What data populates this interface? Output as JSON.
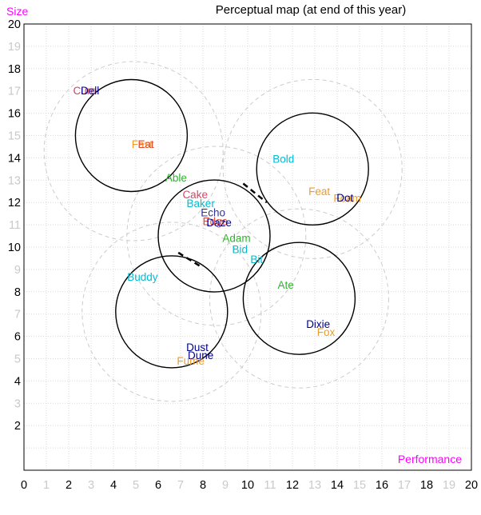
{
  "title": "Perceptual map (at end of this year)",
  "style": {
    "accent_magenta": "#ff00ff",
    "tick_even": "#000000",
    "tick_odd": "#c9c9c9",
    "grid_color": "#d9d9d9",
    "rough_circle_color": "#cccccc",
    "fine_circle_color": "#000000",
    "plot_border_color": "#000000"
  },
  "chart_data": {
    "type": "scatter",
    "title": "Perceptual map (at end of this year)",
    "xlabel": "Performance",
    "ylabel": "Size",
    "xlim": [
      0,
      20
    ],
    "ylim": [
      0,
      20
    ],
    "grid": true,
    "x_ticks": [
      0,
      1,
      2,
      3,
      4,
      5,
      6,
      7,
      8,
      9,
      10,
      11,
      12,
      13,
      14,
      15,
      16,
      17,
      18,
      19,
      20
    ],
    "y_ticks": [
      2,
      3,
      4,
      5,
      6,
      7,
      8,
      9,
      10,
      11,
      12,
      13,
      14,
      15,
      16,
      17,
      18,
      19,
      20
    ],
    "points": [
      {
        "name": "Cure",
        "x": 2.72,
        "y": 17.0,
        "color": "#cc4466"
      },
      {
        "name": "Dell",
        "x": 2.95,
        "y": 17.0,
        "color": "#00008b"
      },
      {
        "name": "Fast",
        "x": 5.28,
        "y": 14.6,
        "color": "#ef9b28"
      },
      {
        "name": "Eat",
        "x": 5.45,
        "y": 14.6,
        "color": "#dd4b39"
      },
      {
        "name": "Able",
        "x": 6.8,
        "y": 13.1,
        "color": "#2eb52e"
      },
      {
        "name": "Cake",
        "x": 7.65,
        "y": 12.35,
        "color": "#dd4466"
      },
      {
        "name": "Baker",
        "x": 7.9,
        "y": 11.95,
        "color": "#00bcd4"
      },
      {
        "name": "Echo",
        "x": 8.45,
        "y": 11.55,
        "color": "#333399"
      },
      {
        "name": "Edge",
        "x": 8.55,
        "y": 11.15,
        "color": "#dd4b39"
      },
      {
        "name": "Daze",
        "x": 8.72,
        "y": 11.1,
        "color": "#00008b"
      },
      {
        "name": "Adam",
        "x": 9.5,
        "y": 10.4,
        "color": "#2eb52e"
      },
      {
        "name": "Bid",
        "x": 9.65,
        "y": 9.9,
        "color": "#00bcd4"
      },
      {
        "name": "Bit",
        "x": 10.4,
        "y": 9.45,
        "color": "#00bcd4"
      },
      {
        "name": "Bold",
        "x": 11.6,
        "y": 13.95,
        "color": "#00bcd4"
      },
      {
        "name": "Feat",
        "x": 13.2,
        "y": 12.5,
        "color": "#ef9b28"
      },
      {
        "name": "Foam",
        "x": 14.45,
        "y": 12.18,
        "color": "#ef9b28"
      },
      {
        "name": "Dot",
        "x": 14.35,
        "y": 12.2,
        "color": "#00008b"
      },
      {
        "name": "Buddy",
        "x": 5.3,
        "y": 8.65,
        "color": "#00bcd4"
      },
      {
        "name": "Ate",
        "x": 11.7,
        "y": 8.3,
        "color": "#2eb52e"
      },
      {
        "name": "Dixie",
        "x": 13.15,
        "y": 6.55,
        "color": "#00008b"
      },
      {
        "name": "Fox",
        "x": 13.5,
        "y": 6.18,
        "color": "#ef9b28"
      },
      {
        "name": "Dust",
        "x": 7.75,
        "y": 5.5,
        "color": "#00008b"
      },
      {
        "name": "Dune",
        "x": 7.9,
        "y": 5.15,
        "color": "#00008b"
      },
      {
        "name": "Fume",
        "x": 7.45,
        "y": 4.9,
        "color": "#ef9b28"
      }
    ],
    "fine_cut_circles": [
      {
        "cx": 4.8,
        "cy": 15.0,
        "r": 2.5
      },
      {
        "cx": 8.5,
        "cy": 10.5,
        "r": 2.5
      },
      {
        "cx": 12.9,
        "cy": 13.5,
        "r": 2.5
      },
      {
        "cx": 6.6,
        "cy": 7.1,
        "r": 2.5
      },
      {
        "cx": 12.3,
        "cy": 7.7,
        "r": 2.5
      }
    ],
    "rough_cut_circles": [
      {
        "cx": 4.9,
        "cy": 14.3,
        "r": 4
      },
      {
        "cx": 8.6,
        "cy": 10.5,
        "r": 4
      },
      {
        "cx": 12.9,
        "cy": 13.5,
        "r": 4
      },
      {
        "cx": 6.6,
        "cy": 7.1,
        "r": 4
      },
      {
        "cx": 12.3,
        "cy": 7.7,
        "r": 4
      }
    ],
    "overlap_dashes": [
      {
        "x1": 9.8,
        "y1": 12.85,
        "x2": 10.85,
        "y2": 12.0
      },
      {
        "x1": 6.9,
        "y1": 9.75,
        "x2": 7.95,
        "y2": 9.1
      }
    ]
  }
}
